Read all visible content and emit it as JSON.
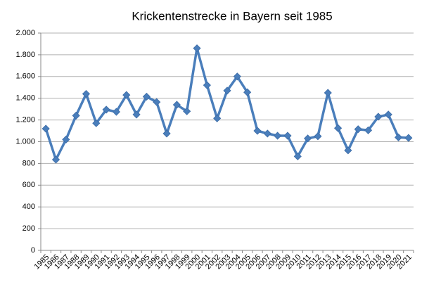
{
  "chart_data": {
    "type": "line",
    "title": "Krickentenstrecke in Bayern seit 1985",
    "categories": [
      "1985",
      "1986",
      "1987",
      "1988",
      "1989",
      "1990",
      "1991",
      "1992",
      "1993",
      "1994",
      "1995",
      "1996",
      "1997",
      "1998",
      "1999",
      "2000",
      "2001",
      "2002",
      "2003",
      "2004",
      "2005",
      "2006",
      "2007",
      "2008",
      "2009",
      "2010",
      "2011",
      "2012",
      "2013",
      "2014",
      "2015",
      "2016",
      "2017",
      "2018",
      "2019",
      "2020",
      "2021"
    ],
    "series": [
      {
        "color": "#4a7ebb",
        "values": [
          1120,
          835,
          1020,
          1240,
          1440,
          1170,
          1295,
          1275,
          1430,
          1250,
          1415,
          1365,
          1075,
          1340,
          1280,
          1860,
          1520,
          1215,
          1470,
          1600,
          1455,
          1100,
          1075,
          1055,
          1055,
          865,
          1030,
          1050,
          1450,
          1125,
          920,
          1115,
          1105,
          1230,
          1250,
          1040,
          1035
        ]
      }
    ],
    "ylim": [
      0,
      2000
    ],
    "yticks": [
      0,
      200,
      400,
      600,
      800,
      {
        "value": 1000,
        "label": "1.000"
      },
      {
        "value": 1200,
        "label": "1.200"
      },
      {
        "value": 1400,
        "label": "1.400"
      },
      {
        "value": 1600,
        "label": "1.600"
      },
      {
        "value": 1800,
        "label": "1.800"
      },
      {
        "value": 2000,
        "label": "2.000"
      }
    ],
    "grid": true
  }
}
